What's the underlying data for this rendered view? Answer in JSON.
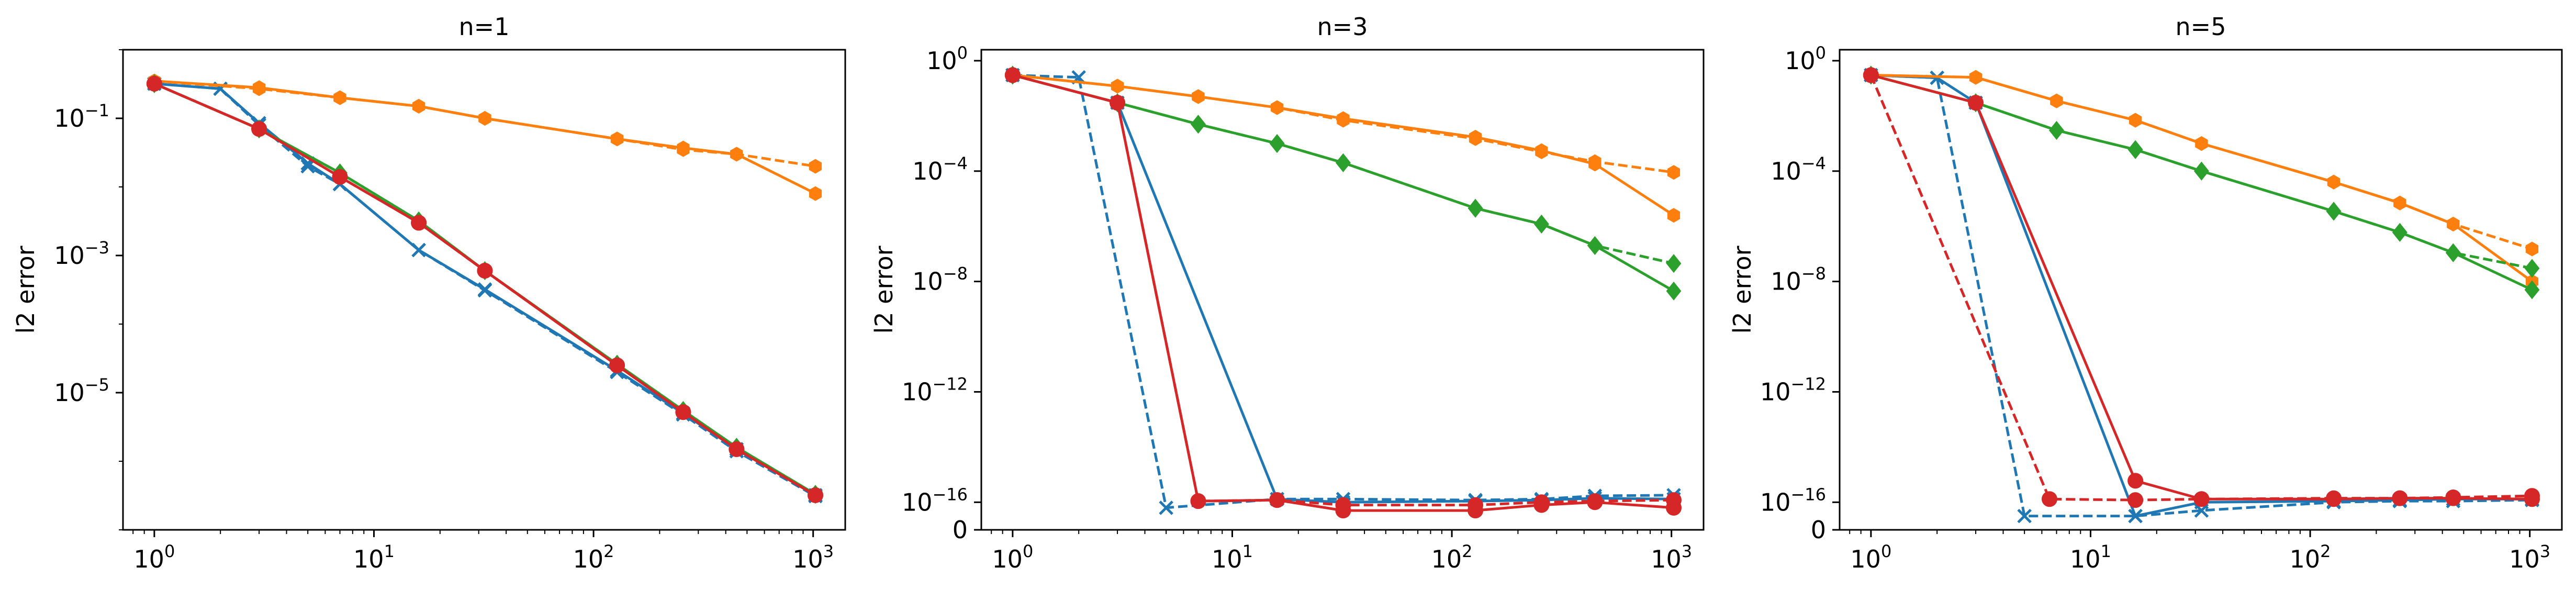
{
  "chart_data": [
    {
      "type": "line",
      "title": "n=1",
      "xlabel": "",
      "ylabel": "l2 error",
      "xscale": "log",
      "yscale": "log",
      "xlim": [
        0.72,
        1400
      ],
      "ylim": [
        1e-07,
        1.0
      ],
      "xticks": [
        {
          "value": 1,
          "base": "10",
          "exp": "0"
        },
        {
          "value": 10,
          "base": "10",
          "exp": "1"
        },
        {
          "value": 100,
          "base": "10",
          "exp": "2"
        },
        {
          "value": 1000,
          "base": "10",
          "exp": "3"
        }
      ],
      "yticks": [
        {
          "value": 0.1,
          "base": "10",
          "exp": "−1"
        },
        {
          "value": 0.001,
          "base": "10",
          "exp": "−3"
        },
        {
          "value": 1e-05,
          "base": "10",
          "exp": "−5"
        }
      ],
      "grid": false,
      "series": [
        {
          "color": "#1f77b4",
          "dash": false,
          "marker": "x",
          "x": [
            1,
            2,
            3,
            5,
            7,
            16,
            32,
            128,
            256,
            448,
            1024
          ],
          "y": [
            0.32,
            0.27,
            0.085,
            0.022,
            0.011,
            0.0012,
            0.00032,
            2.1e-05,
            5e-06,
            1.5e-06,
            3.2e-07
          ]
        },
        {
          "color": "#1f77b4",
          "dash": true,
          "marker": "x",
          "x": [
            1,
            2,
            3,
            5,
            7,
            16,
            32,
            128,
            256,
            448,
            1024
          ],
          "y": [
            0.32,
            0.27,
            0.08,
            0.02,
            0.011,
            0.0012,
            0.00031,
            2e-05,
            4.8e-06,
            1.4e-06,
            3.1e-07
          ]
        },
        {
          "color": "#ff7f0e",
          "dash": false,
          "marker": "hexagon",
          "x": [
            1,
            3,
            7,
            16,
            32,
            128,
            256,
            448,
            1024
          ],
          "y": [
            0.35,
            0.28,
            0.2,
            0.15,
            0.1,
            0.05,
            0.037,
            0.03,
            0.008
          ]
        },
        {
          "color": "#ff7f0e",
          "dash": true,
          "marker": "hexagon",
          "x": [
            1,
            3,
            7,
            16,
            32,
            128,
            256,
            448,
            1024
          ],
          "y": [
            0.35,
            0.27,
            0.2,
            0.15,
            0.1,
            0.05,
            0.035,
            0.03,
            0.02
          ]
        },
        {
          "color": "#2ca02c",
          "dash": false,
          "marker": "diamond",
          "x": [
            1,
            3,
            7,
            16,
            32,
            128,
            256,
            448,
            1024
          ],
          "y": [
            0.32,
            0.07,
            0.016,
            0.0032,
            0.0006,
            2.6e-05,
            5.5e-06,
            1.6e-06,
            3.3e-07
          ]
        },
        {
          "color": "#2ca02c",
          "dash": true,
          "marker": "diamond",
          "x": [
            1,
            3,
            7,
            16,
            32,
            128,
            256,
            448,
            1024
          ],
          "y": [
            0.32,
            0.07,
            0.016,
            0.0032,
            0.0006,
            2.6e-05,
            5.5e-06,
            1.6e-06,
            3.3e-07
          ]
        },
        {
          "color": "#d62728",
          "dash": false,
          "marker": "circle",
          "x": [
            1,
            3,
            7,
            16,
            32,
            128,
            256,
            448,
            1024
          ],
          "y": [
            0.32,
            0.07,
            0.014,
            0.003,
            0.0006,
            2.5e-05,
            5.2e-06,
            1.5e-06,
            3.2e-07
          ]
        },
        {
          "color": "#d62728",
          "dash": true,
          "marker": "circle",
          "x": [
            1,
            3,
            7,
            16,
            32,
            128,
            256,
            448,
            1024
          ],
          "y": [
            0.32,
            0.07,
            0.014,
            0.003,
            0.0006,
            2.5e-05,
            5.2e-06,
            1.5e-06,
            3.2e-07
          ]
        }
      ]
    },
    {
      "type": "line",
      "title": "n=3",
      "xlabel": "",
      "ylabel": "l2 error",
      "xscale": "log",
      "yscale": "symlog",
      "linthresh": 1e-16,
      "xlim": [
        0.72,
        1400
      ],
      "ylim": [
        0,
        2.5
      ],
      "xticks": [
        {
          "value": 1,
          "base": "10",
          "exp": "0"
        },
        {
          "value": 10,
          "base": "10",
          "exp": "1"
        },
        {
          "value": 100,
          "base": "10",
          "exp": "2"
        },
        {
          "value": 1000,
          "base": "10",
          "exp": "3"
        }
      ],
      "yticks": [
        {
          "value": 1,
          "base": "10",
          "exp": "0"
        },
        {
          "value": 0.0001,
          "base": "10",
          "exp": "−4"
        },
        {
          "value": 1e-08,
          "base": "10",
          "exp": "−8"
        },
        {
          "value": 1e-12,
          "base": "10",
          "exp": "−12"
        },
        {
          "value": 1e-16,
          "base": "10",
          "exp": "−16"
        },
        {
          "value": 0,
          "base": "0",
          "exp": ""
        }
      ],
      "grid": false,
      "series": [
        {
          "color": "#1f77b4",
          "dash": false,
          "marker": "x",
          "x": [
            1,
            3,
            16,
            32,
            128,
            256,
            448,
            1024
          ],
          "y": [
            0.3,
            0.03,
            1.3e-16,
            1e-16,
            1.1e-16,
            1.2e-16,
            1.4e-16,
            1.3e-16
          ]
        },
        {
          "color": "#1f77b4",
          "dash": true,
          "marker": "x",
          "x": [
            1,
            2,
            5,
            16,
            32,
            128,
            256,
            448,
            1024
          ],
          "y": [
            0.3,
            0.25,
            8e-17,
            1.3e-16,
            1.3e-16,
            1.2e-16,
            1.3e-16,
            1.7e-16,
            1.8e-16
          ]
        },
        {
          "color": "#ff7f0e",
          "dash": false,
          "marker": "hexagon",
          "x": [
            1,
            3,
            7,
            16,
            32,
            128,
            256,
            448,
            1024
          ],
          "y": [
            0.3,
            0.12,
            0.05,
            0.02,
            0.008,
            0.0017,
            0.00055,
            0.00018,
            2.5e-06
          ]
        },
        {
          "color": "#ff7f0e",
          "dash": true,
          "marker": "hexagon",
          "x": [
            1,
            3,
            7,
            16,
            32,
            128,
            256,
            448,
            1024
          ],
          "y": [
            0.3,
            0.12,
            0.05,
            0.02,
            0.007,
            0.0015,
            0.0005,
            0.00022,
            9e-05
          ]
        },
        {
          "color": "#2ca02c",
          "dash": false,
          "marker": "diamond",
          "x": [
            1,
            3,
            7,
            16,
            32,
            128,
            256,
            448,
            1024
          ],
          "y": [
            0.3,
            0.03,
            0.005,
            0.001,
            0.0002,
            4.5e-06,
            1.2e-06,
            2e-07,
            4.5e-09
          ]
        },
        {
          "color": "#2ca02c",
          "dash": true,
          "marker": "diamond",
          "x": [
            1,
            3,
            7,
            16,
            32,
            128,
            256,
            448,
            1024
          ],
          "y": [
            0.3,
            0.03,
            0.005,
            0.001,
            0.0002,
            4.5e-06,
            1.2e-06,
            2e-07,
            4.5e-08
          ]
        },
        {
          "color": "#d62728",
          "dash": false,
          "marker": "circle",
          "x": [
            1,
            3,
            7,
            16,
            32,
            128,
            256,
            448,
            1024
          ],
          "y": [
            0.3,
            0.03,
            1.1e-16,
            1.2e-16,
            7e-17,
            7e-17,
            9e-17,
            1e-16,
            8e-17
          ]
        },
        {
          "color": "#d62728",
          "dash": true,
          "marker": "circle",
          "x": [
            1,
            3,
            7,
            16,
            32,
            128,
            256,
            448,
            1024
          ],
          "y": [
            0.3,
            0.03,
            1.1e-16,
            1.2e-16,
            9e-17,
            9e-17,
            1e-16,
            1.1e-16,
            1.2e-16
          ]
        }
      ]
    },
    {
      "type": "line",
      "title": "n=5",
      "xlabel": "",
      "ylabel": "l2 error",
      "xscale": "log",
      "yscale": "symlog",
      "linthresh": 1e-16,
      "xlim": [
        0.72,
        1400
      ],
      "ylim": [
        0,
        2.5
      ],
      "xticks": [
        {
          "value": 1,
          "base": "10",
          "exp": "0"
        },
        {
          "value": 10,
          "base": "10",
          "exp": "1"
        },
        {
          "value": 100,
          "base": "10",
          "exp": "2"
        },
        {
          "value": 1000,
          "base": "10",
          "exp": "3"
        }
      ],
      "yticks": [
        {
          "value": 1,
          "base": "10",
          "exp": "0"
        },
        {
          "value": 0.0001,
          "base": "10",
          "exp": "−4"
        },
        {
          "value": 1e-08,
          "base": "10",
          "exp": "−8"
        },
        {
          "value": 1e-12,
          "base": "10",
          "exp": "−12"
        },
        {
          "value": 1e-16,
          "base": "10",
          "exp": "−16"
        },
        {
          "value": 0,
          "base": "0",
          "exp": ""
        }
      ],
      "grid": false,
      "series": [
        {
          "color": "#1f77b4",
          "dash": false,
          "marker": "x",
          "x": [
            1,
            2,
            3,
            16,
            32,
            128,
            256,
            448,
            1024
          ],
          "y": [
            0.3,
            0.24,
            0.03,
            5e-17,
            1e-16,
            1.1e-16,
            1.2e-16,
            1.3e-16,
            1.3e-16
          ]
        },
        {
          "color": "#1f77b4",
          "dash": true,
          "marker": "x",
          "x": [
            1,
            2,
            5,
            16,
            32,
            128,
            256,
            448,
            1024
          ],
          "y": [
            0.3,
            0.24,
            5e-17,
            5e-17,
            7e-17,
            1e-16,
            1.1e-16,
            1.1e-16,
            1.2e-16
          ]
        },
        {
          "color": "#ff7f0e",
          "dash": false,
          "marker": "hexagon",
          "x": [
            1,
            3,
            7,
            16,
            32,
            128,
            256,
            448,
            1024
          ],
          "y": [
            0.3,
            0.25,
            0.035,
            0.007,
            0.001,
            4e-05,
            7e-06,
            1.2e-06,
            1e-08
          ]
        },
        {
          "color": "#ff7f0e",
          "dash": true,
          "marker": "hexagon",
          "x": [
            1,
            3,
            7,
            16,
            32,
            128,
            256,
            448,
            1024
          ],
          "y": [
            0.3,
            0.25,
            0.035,
            0.007,
            0.001,
            4e-05,
            7e-06,
            1.2e-06,
            1.5e-07
          ]
        },
        {
          "color": "#2ca02c",
          "dash": false,
          "marker": "diamond",
          "x": [
            1,
            3,
            7,
            16,
            32,
            128,
            256,
            448,
            1024
          ],
          "y": [
            0.3,
            0.03,
            0.003,
            0.0006,
            0.0001,
            3.5e-06,
            6e-07,
            1.1e-07,
            5e-09
          ]
        },
        {
          "color": "#2ca02c",
          "dash": true,
          "marker": "diamond",
          "x": [
            1,
            3,
            7,
            16,
            32,
            128,
            256,
            448,
            1024
          ],
          "y": [
            0.3,
            0.03,
            0.003,
            0.0006,
            0.0001,
            3.5e-06,
            6e-07,
            1.1e-07,
            3e-08
          ]
        },
        {
          "color": "#d62728",
          "dash": false,
          "marker": "circle",
          "x": [
            1,
            3,
            16,
            32,
            128,
            256,
            448,
            1024
          ],
          "y": [
            0.3,
            0.03,
            6e-16,
            1.3e-16,
            1.3e-16,
            1.4e-16,
            1.4e-16,
            1.3e-16
          ]
        },
        {
          "color": "#d62728",
          "dash": true,
          "marker": "circle",
          "x": [
            1,
            6.5,
            16,
            32,
            128,
            256,
            448,
            1024
          ],
          "y": [
            0.3,
            1.3e-16,
            1.2e-16,
            1.3e-16,
            1.4e-16,
            1.4e-16,
            1.5e-16,
            1.7e-16
          ]
        }
      ]
    }
  ]
}
